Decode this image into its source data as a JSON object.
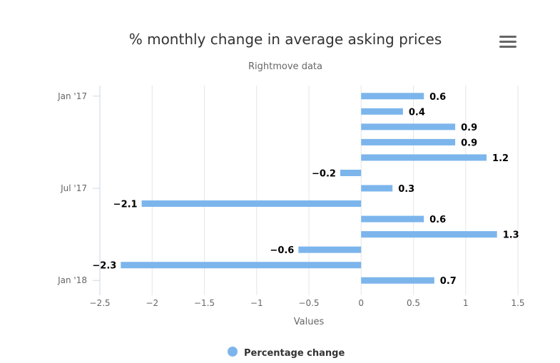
{
  "menu": {
    "icon": "hamburger-menu-icon"
  },
  "chart_data": {
    "type": "bar",
    "orientation": "horizontal",
    "title": "% monthly change in average asking prices",
    "subtitle": "Rightmove data",
    "xlabel": "Values",
    "xlim": [
      -2.5,
      1.5
    ],
    "x_ticks": [
      -2.5,
      -2,
      -1.5,
      -1,
      -0.5,
      0,
      0.5,
      1,
      1.5
    ],
    "x_tick_labels": [
      "−2.5",
      "−2",
      "−1.5",
      "−1",
      "−0.5",
      "0",
      "0.5",
      "1",
      "1.5"
    ],
    "category_ticks": [
      {
        "index": 0,
        "label": "Jan '17"
      },
      {
        "index": 6,
        "label": "Jul '17"
      },
      {
        "index": 12,
        "label": "Jan '18"
      }
    ],
    "grid": true,
    "legend_position": "bottom-center",
    "color": "#7cb5ec",
    "series": [
      {
        "name": "Percentage change",
        "values": [
          0.6,
          0.4,
          0.9,
          0.9,
          1.2,
          -0.2,
          0.3,
          -2.1,
          0.6,
          1.3,
          -0.6,
          -2.3,
          0.7
        ],
        "value_labels": [
          "0.6",
          "0.4",
          "0.9",
          "0.9",
          "1.2",
          "−0.2",
          "0.3",
          "−2.1",
          "0.6",
          "1.3",
          "−0.6",
          "−2.3",
          "0.7"
        ]
      }
    ]
  }
}
